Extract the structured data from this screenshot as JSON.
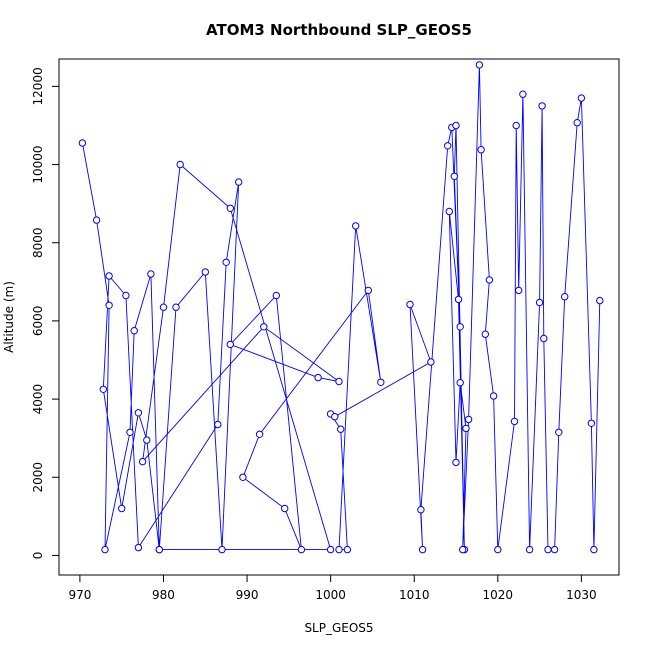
{
  "chart_data": {
    "type": "line",
    "title": "ATOM3 Northbound SLP_GEOS5",
    "xlabel": "SLP_GEOS5",
    "ylabel": "Altitude (m)",
    "xlim": [
      967.5,
      1034.5
    ],
    "ylim": [
      -500,
      12700
    ],
    "xticks": [
      970,
      980,
      990,
      1000,
      1010,
      1020,
      1030
    ],
    "yticks": [
      0,
      2000,
      4000,
      6000,
      8000,
      10000,
      12000
    ],
    "grid": false,
    "legend": "none",
    "colors": {
      "series": "#0000ff"
    },
    "series": [
      {
        "markers": "open-circle",
        "x": [
          970.3,
          972.0,
          973.5,
          973.0,
          976.0,
          976.5,
          978.5,
          979.5,
          981.5,
          985.0,
          987.0,
          989.0,
          987.5,
          986.5,
          977.0,
          975.5,
          973.5,
          972.8,
          975.0,
          977.0,
          978.0,
          979.5,
          1000.0,
          988.0,
          982.0,
          980.0,
          977.5,
          992.0,
          1001.0,
          998.5,
          988.0,
          993.5,
          996.5,
          994.5,
          989.5,
          991.5,
          1004.5,
          1006.0,
          1003.0,
          1001.0,
          1002.0,
          1001.2,
          1000.0,
          1000.5,
          1012.0,
          1009.5,
          1011.0,
          1010.8,
          1014.0,
          1014.5,
          1015.5,
          1014.8,
          1015.0,
          1016.0,
          1015.3,
          1014.2,
          1015.0,
          1015.5,
          1016.2,
          1015.8,
          1016.5,
          1017.8,
          1018.0,
          1019.0,
          1018.5,
          1019.5,
          1020.0,
          1022.0,
          1022.2,
          1022.5,
          1023.0,
          1023.8,
          1025.0,
          1025.3,
          1025.5,
          1026.0,
          1026.8,
          1027.3,
          1028.0,
          1029.5,
          1030.0,
          1031.2,
          1031.5,
          1032.2
        ],
        "y": [
          10550,
          8580,
          6400,
          150,
          3150,
          5750,
          7200,
          150,
          6350,
          7250,
          150,
          9550,
          7500,
          3350,
          200,
          6650,
          7150,
          4250,
          1200,
          3650,
          2950,
          150,
          150,
          8880,
          10000,
          6350,
          2400,
          5850,
          4450,
          4550,
          5400,
          6650,
          150,
          1200,
          2000,
          3100,
          6780,
          4430,
          8430,
          150,
          150,
          3230,
          3620,
          3550,
          4950,
          6420,
          150,
          1170,
          10480,
          10950,
          5850,
          9700,
          11000,
          150,
          6550,
          8800,
          2380,
          4420,
          3250,
          150,
          3480,
          12550,
          10380,
          7050,
          5660,
          4080,
          150,
          3430,
          11000,
          6780,
          11800,
          150,
          6470,
          11500,
          5550,
          150,
          150,
          3150,
          6620,
          11070,
          11700,
          3380,
          150,
          6520
        ]
      }
    ]
  }
}
